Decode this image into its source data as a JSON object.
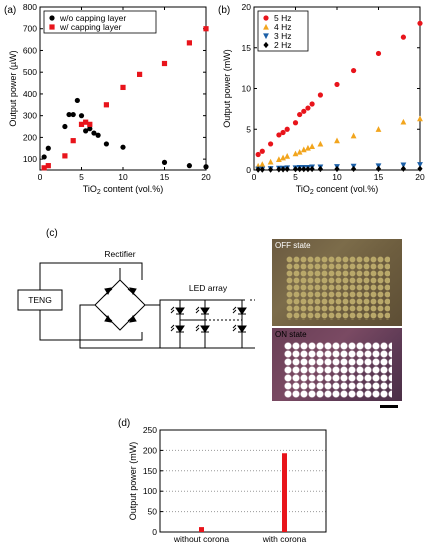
{
  "panels": {
    "a": {
      "label": "(a)"
    },
    "b": {
      "label": "(b)"
    },
    "c": {
      "label": "(c)"
    },
    "d": {
      "label": "(d)"
    }
  },
  "circuit": {
    "teng_label": "TENG",
    "rectifier_label": "Rectifier",
    "led_array_label": "LED array"
  },
  "photos": {
    "off_label": "OFF state",
    "on_label": "ON state"
  },
  "colors": {
    "red": "#e8141b",
    "black": "#000000",
    "orange": "#f2a51d",
    "blue": "#1b5fa7"
  },
  "chart_data": [
    {
      "id": "a",
      "type": "scatter",
      "xlabel": "TiO2 content (vol.%)",
      "ylabel": "Output power (µW)",
      "xlim": [
        0,
        20
      ],
      "ylim": [
        50,
        800
      ],
      "xticks": [
        0,
        5,
        10,
        15,
        20
      ],
      "yticks": [
        100,
        200,
        300,
        400,
        500,
        600,
        700,
        800
      ],
      "legend_position": "top-left",
      "series": [
        {
          "name": "w/o capping layer",
          "marker": "circle",
          "color": "#000000",
          "points": [
            [
              0.5,
              110
            ],
            [
              1,
              150
            ],
            [
              3,
              250
            ],
            [
              3.5,
              305
            ],
            [
              4,
              305
            ],
            [
              4.5,
              370
            ],
            [
              5,
              300
            ],
            [
              5.5,
              230
            ],
            [
              6,
              240
            ],
            [
              6.5,
              220
            ],
            [
              7,
              210
            ],
            [
              8,
              170
            ],
            [
              10,
              155
            ],
            [
              15,
              85
            ],
            [
              18,
              70
            ],
            [
              20,
              65
            ]
          ]
        },
        {
          "name": "w/  capping layer",
          "marker": "square",
          "color": "#e8141b",
          "points": [
            [
              0.5,
              60
            ],
            [
              1,
              70
            ],
            [
              3,
              115
            ],
            [
              4,
              185
            ],
            [
              5,
              260
            ],
            [
              5.5,
              270
            ],
            [
              6,
              260
            ],
            [
              8,
              350
            ],
            [
              10,
              430
            ],
            [
              12,
              490
            ],
            [
              15,
              540
            ],
            [
              18,
              635
            ],
            [
              20,
              700
            ]
          ]
        }
      ]
    },
    {
      "id": "b",
      "type": "scatter",
      "xlabel": "TiO2 concent (vol.%)",
      "ylabel": "Output power (mW)",
      "xlim": [
        0,
        20
      ],
      "ylim": [
        0,
        20
      ],
      "xticks": [
        0,
        5,
        10,
        15,
        20
      ],
      "yticks": [
        0,
        5,
        10,
        15,
        20
      ],
      "legend_position": "top-left",
      "series": [
        {
          "name": "5 Hz",
          "marker": "circle",
          "color": "#e8141b",
          "points": [
            [
              0.5,
              1.9
            ],
            [
              1,
              2.3
            ],
            [
              2,
              3.2
            ],
            [
              3,
              4.3
            ],
            [
              3.5,
              4.6
            ],
            [
              4,
              5.0
            ],
            [
              5,
              5.8
            ],
            [
              5.5,
              6.8
            ],
            [
              6,
              7.2
            ],
            [
              6.5,
              7.6
            ],
            [
              7,
              8.1
            ],
            [
              8,
              9.2
            ],
            [
              10,
              10.5
            ],
            [
              12,
              12.2
            ],
            [
              15,
              14.3
            ],
            [
              18,
              16.3
            ],
            [
              20,
              18.0
            ]
          ]
        },
        {
          "name": "4 Hz",
          "marker": "triangle-up",
          "color": "#f2a51d",
          "points": [
            [
              0.5,
              0.5
            ],
            [
              1,
              0.7
            ],
            [
              2,
              1.0
            ],
            [
              3,
              1.3
            ],
            [
              3.5,
              1.5
            ],
            [
              4,
              1.7
            ],
            [
              5,
              2.0
            ],
            [
              5.5,
              2.2
            ],
            [
              6,
              2.5
            ],
            [
              6.5,
              2.7
            ],
            [
              7,
              2.9
            ],
            [
              8,
              3.2
            ],
            [
              10,
              3.6
            ],
            [
              12,
              4.2
            ],
            [
              15,
              5.0
            ],
            [
              18,
              5.9
            ],
            [
              20,
              6.3
            ]
          ]
        },
        {
          "name": "3 Hz",
          "marker": "triangle-down",
          "color": "#1b5fa7",
          "points": [
            [
              0.5,
              0.1
            ],
            [
              1,
              0.1
            ],
            [
              2,
              0.15
            ],
            [
              3,
              0.2
            ],
            [
              3.5,
              0.2
            ],
            [
              4,
              0.25
            ],
            [
              5,
              0.25
            ],
            [
              5.5,
              0.3
            ],
            [
              6,
              0.3
            ],
            [
              6.5,
              0.3
            ],
            [
              7,
              0.35
            ],
            [
              8,
              0.35
            ],
            [
              10,
              0.4
            ],
            [
              12,
              0.45
            ],
            [
              15,
              0.5
            ],
            [
              18,
              0.6
            ],
            [
              20,
              0.65
            ]
          ]
        },
        {
          "name": "2 Hz",
          "marker": "diamond",
          "color": "#000000",
          "points": [
            [
              0.5,
              0.05
            ],
            [
              1,
              0.05
            ],
            [
              2,
              0.05
            ],
            [
              3,
              0.08
            ],
            [
              3.5,
              0.08
            ],
            [
              4,
              0.1
            ],
            [
              5,
              0.1
            ],
            [
              5.5,
              0.1
            ],
            [
              6,
              0.1
            ],
            [
              6.5,
              0.1
            ],
            [
              7,
              0.12
            ],
            [
              8,
              0.12
            ],
            [
              10,
              0.12
            ],
            [
              12,
              0.13
            ],
            [
              15,
              0.14
            ],
            [
              18,
              0.15
            ],
            [
              20,
              0.16
            ]
          ]
        }
      ]
    },
    {
      "id": "d",
      "type": "bar",
      "ylabel": "Output power (mW)",
      "ylim": [
        0,
        250
      ],
      "yticks": [
        0,
        50,
        100,
        150,
        200,
        250
      ],
      "grid": "horizontal-dotted",
      "categories": [
        "without corona",
        "with corona"
      ],
      "values": [
        12,
        193
      ],
      "color": "#e8141b"
    }
  ]
}
